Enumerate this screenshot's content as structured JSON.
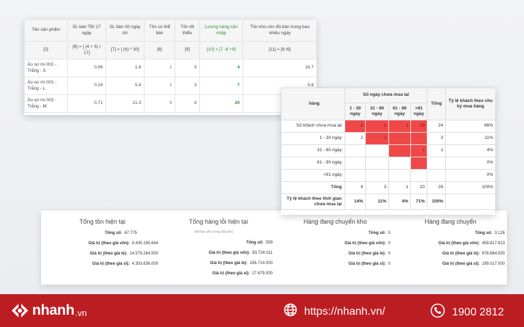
{
  "inventory_table": {
    "headers": [
      "Tên sản phẩm",
      "SL bán TB/ 17 ngày",
      "SL bán 30 ngày tới",
      "Tồn có thể bán",
      "Tồn tối thiểu",
      "Lượng hàng cần nhập",
      "Tồn kho còn đủ bán trong bao nhiêu ngày"
    ],
    "formulas": [
      "[2]",
      "[6] = [ (4 + 5) / 17]",
      "[7] = [ (6) * 30]",
      "[8]",
      "[9]",
      "[10] = [7 -8 +9]",
      "[11] = [8 /6]"
    ],
    "rows": [
      [
        "Áo sơ mi 001 - Trắng - S",
        "0.06",
        "1.8",
        "1",
        "3",
        "4",
        "16.7"
      ],
      [
        "Áo sơ mi 001 - Trắng - L",
        "0.18",
        "5.4",
        "1",
        "3",
        "7",
        "5.6"
      ],
      [
        "Áo sơ mi 002 - Trắng - M",
        "0.71",
        "21.3",
        "4",
        "3",
        "20",
        "5.6"
      ]
    ]
  },
  "customer_table": {
    "corner": "hàng",
    "group_header": "Số ngày chưa mua lại",
    "sub_headers": [
      "1 - 30 ngày",
      "31 - 60 ngày",
      "61 - 90 ngày",
      ">91 ngày"
    ],
    "total_header": "Tổng",
    "rate_header": "Tỷ lệ khách theo chu kỳ mua hàng",
    "rows": [
      {
        "label": "Số khách chưa mua lại",
        "cells": [
          "2",
          "2",
          "1",
          "19"
        ],
        "total": "24",
        "rate": "86%"
      },
      {
        "label": "1 - 30 ngày",
        "cells": [
          "2",
          "1",
          "",
          ""
        ],
        "total": "3",
        "rate": "11%"
      },
      {
        "label": "31 - 60 ngày",
        "cells": [
          "",
          "",
          "",
          "1"
        ],
        "total": "1",
        "rate": "4%"
      },
      {
        "label": "61 - 90 ngày",
        "cells": [
          "",
          "",
          "",
          ""
        ],
        "total": "",
        "rate": "0%"
      },
      {
        "label": ">91 ngày",
        "cells": [
          "",
          "",
          "",
          ""
        ],
        "total": "",
        "rate": "0%"
      },
      {
        "label": "Tổng",
        "cells": [
          "4",
          "3",
          "1",
          "20"
        ],
        "total": "28",
        "rate": "100%"
      }
    ],
    "footer": {
      "label": "Tỷ lệ khách theo thời gian chưa mua lại",
      "cells": [
        "14%",
        "11%",
        "4%",
        "71%"
      ],
      "total": "100%"
    }
  },
  "summary": [
    {
      "title": "Tổng tồn hiện tại",
      "items": [
        {
          "label": "Tổng số:",
          "value": "67.775"
        },
        {
          "label": "Giá trị (theo giá vốn):",
          "value": "6.435.185.644"
        },
        {
          "label": "Giá trị (theo giá lẻ):",
          "value": "14.579.264.500"
        },
        {
          "label": "Giá trị (theo giá sỉ):",
          "value": "4.303.636.000"
        }
      ]
    },
    {
      "title": "Tổng hàng lỗi hiện tại",
      "note": "(Đã bao gồm trong tổng tồn)",
      "items": [
        {
          "label": "Tổng số:",
          "value": "559"
        },
        {
          "label": "Giá trị (theo giá vốn):",
          "value": "83.724.011"
        },
        {
          "label": "Giá trị (theo giá lẻ):",
          "value": "156.714.000"
        },
        {
          "label": "Giá trị (theo giá sỉ):",
          "value": "17.679.000"
        }
      ]
    },
    {
      "title": "Hàng đang chuyển kho",
      "items": [
        {
          "label": "Tổng số:",
          "value": "0"
        },
        {
          "label": "Giá trị (theo giá vốn):",
          "value": "0"
        },
        {
          "label": "Giá trị (theo giá lẻ):",
          "value": "0"
        },
        {
          "label": "Giá trị (theo giá sỉ):",
          "value": "0"
        }
      ]
    },
    {
      "title": "Hàng đang chuyển",
      "items": [
        {
          "label": "Tổng số:",
          "value": "3.126"
        },
        {
          "label": "Giá trị (theo giá vốn):",
          "value": "459.817.813"
        },
        {
          "label": "Giá trị (theo giá lẻ):",
          "value": "878.664.500"
        },
        {
          "label": "Giá trị (theo giá sỉ):",
          "value": "199.017.000"
        }
      ]
    }
  ],
  "footer": {
    "brand": "nhanh",
    "tld": ".vn",
    "website": "https://nhanh.vn/",
    "phone": "1900 2812",
    "icons": {
      "logo": "nhanh-logo-icon",
      "web": "globe-icon",
      "phone": "phone-icon"
    },
    "colors": {
      "bar": "#bc1d23",
      "highlight": "#f04848",
      "green": "#2e8b3a",
      "blue": "#2c7bd6"
    }
  }
}
